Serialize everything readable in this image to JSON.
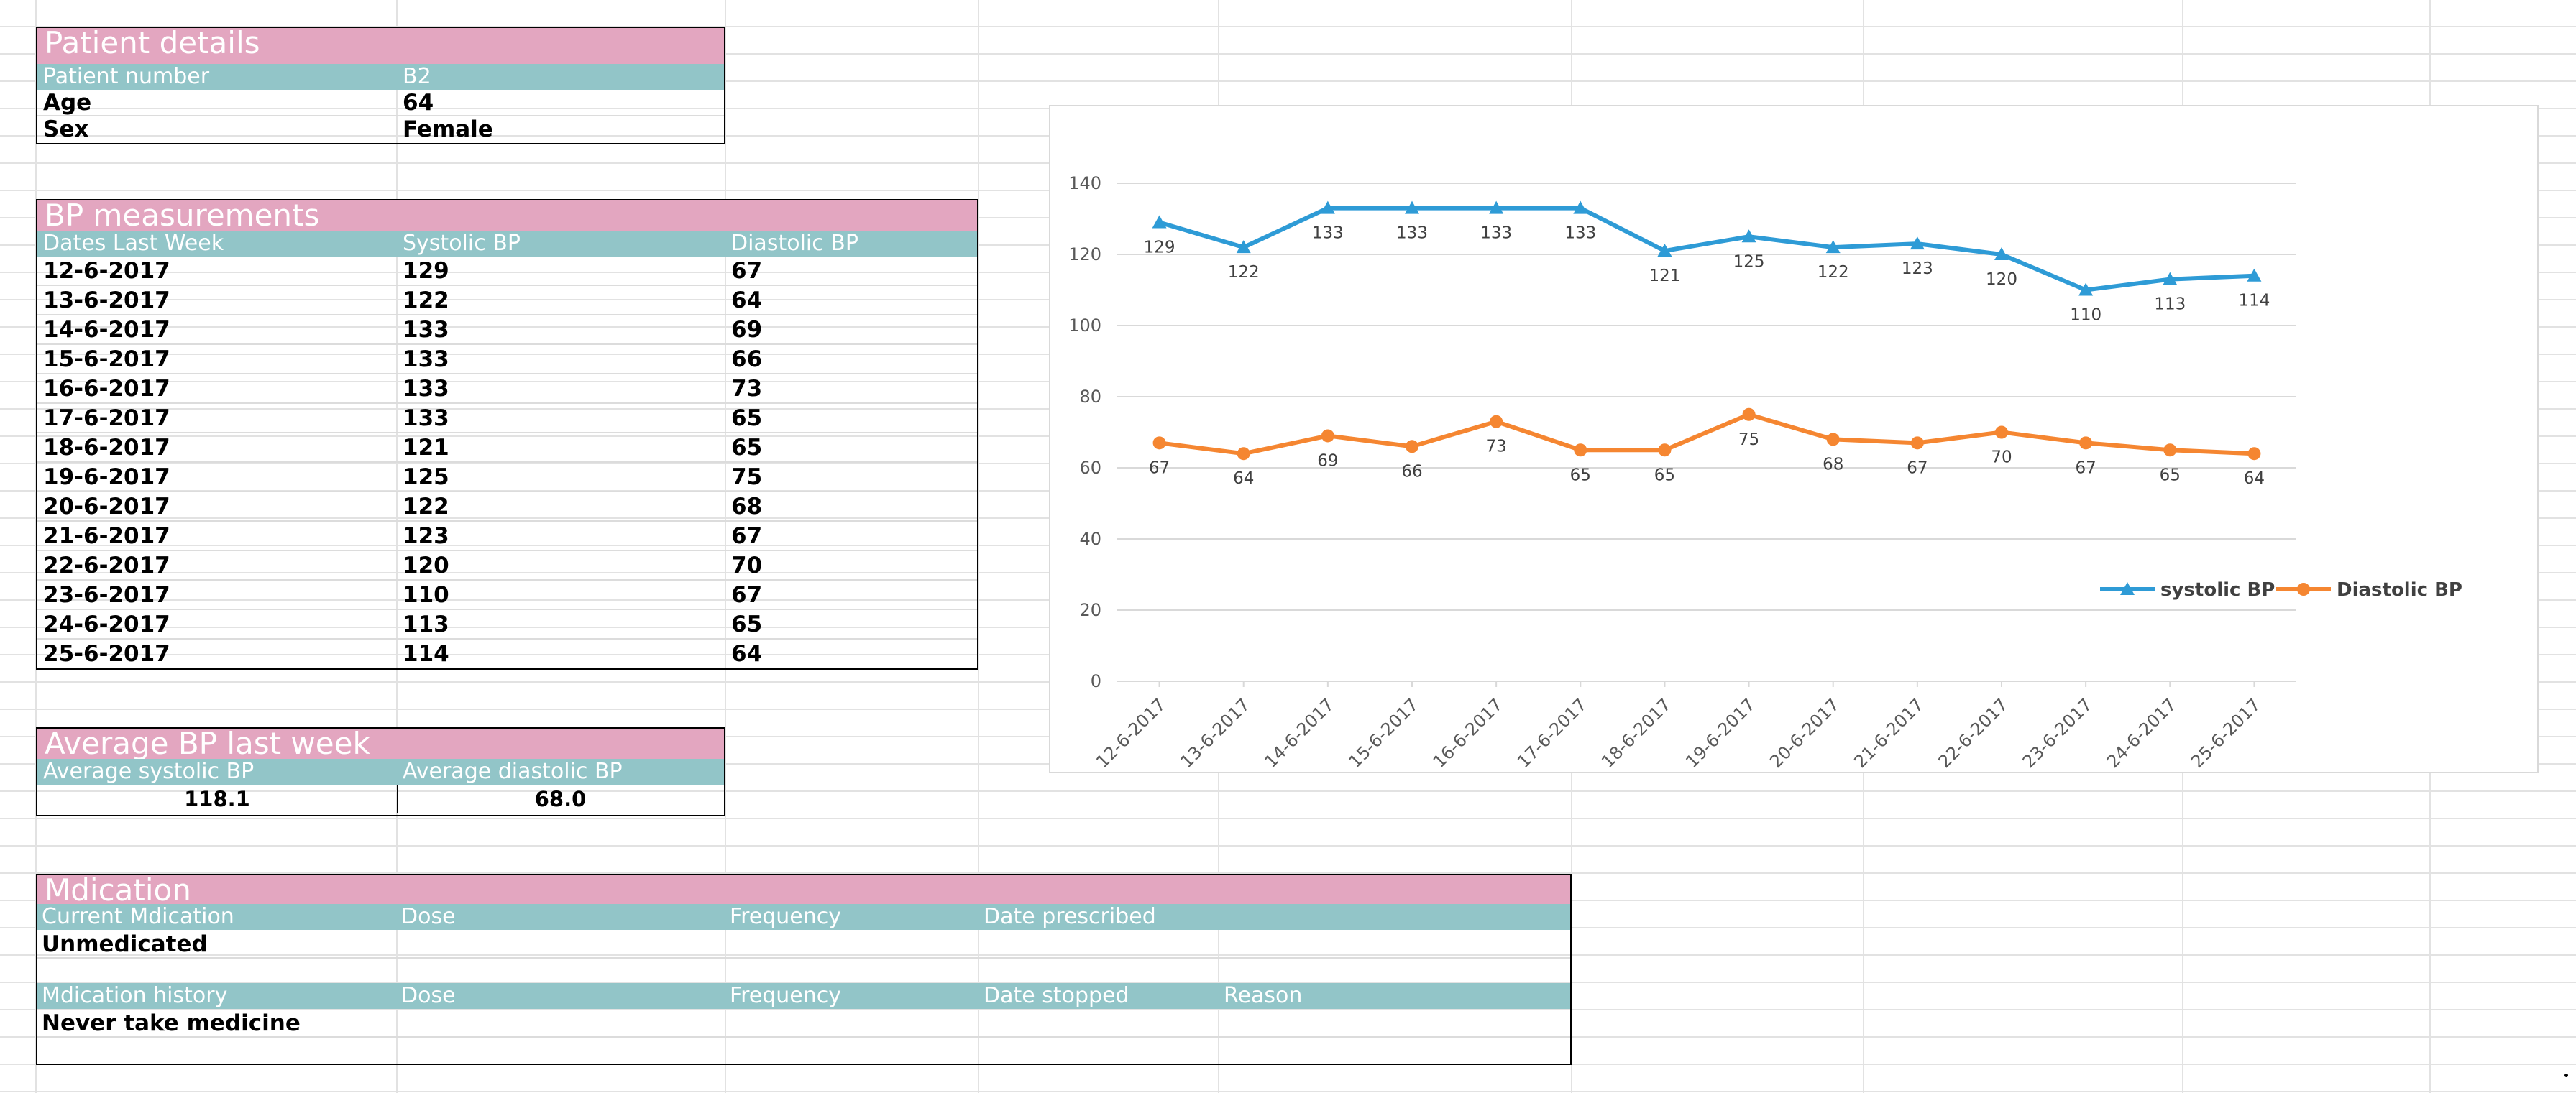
{
  "patient": {
    "title": "Patient details",
    "header_label": "Patient number",
    "header_value": "B2",
    "rows": [
      {
        "label": "Age",
        "value": "64"
      },
      {
        "label": "Sex",
        "value": "Female"
      }
    ]
  },
  "bp": {
    "title": "BP measurements",
    "headers": [
      "Dates Last Week",
      "Systolic BP",
      "Diastolic BP"
    ],
    "rows": [
      [
        "12-6-2017",
        "129",
        "67"
      ],
      [
        "13-6-2017",
        "122",
        "64"
      ],
      [
        "14-6-2017",
        "133",
        "69"
      ],
      [
        "15-6-2017",
        "133",
        "66"
      ],
      [
        "16-6-2017",
        "133",
        "73"
      ],
      [
        "17-6-2017",
        "133",
        "65"
      ],
      [
        "18-6-2017",
        "121",
        "65"
      ],
      [
        "19-6-2017",
        "125",
        "75"
      ],
      [
        "20-6-2017",
        "122",
        "68"
      ],
      [
        "21-6-2017",
        "123",
        "67"
      ],
      [
        "22-6-2017",
        "120",
        "70"
      ],
      [
        "23-6-2017",
        "110",
        "67"
      ],
      [
        "24-6-2017",
        "113",
        "65"
      ],
      [
        "25-6-2017",
        "114",
        "64"
      ]
    ]
  },
  "average": {
    "title": "Average BP last week",
    "headers": [
      "Average systolic BP",
      "Average diastolic BP"
    ],
    "values": [
      "118.1",
      "68.0"
    ]
  },
  "medication": {
    "title": "Mdication",
    "current_headers": [
      "Current Mdication",
      "Dose",
      "Frequency",
      "Date prescribed"
    ],
    "current_value": "Unmedicated",
    "history_headers": [
      "Mdication history",
      "Dose",
      "Frequency",
      "Date stopped",
      "Reason"
    ],
    "history_value": "Never take medicine"
  },
  "colors": {
    "title_bg": "#e3a6c0",
    "header_bg": "#92c5c8",
    "systolic": "#2e9bd6",
    "diastolic": "#f58631"
  },
  "chart_data": {
    "type": "line",
    "categories": [
      "12-6-2017",
      "13-6-2017",
      "14-6-2017",
      "15-6-2017",
      "16-6-2017",
      "17-6-2017",
      "18-6-2017",
      "19-6-2017",
      "20-6-2017",
      "21-6-2017",
      "22-6-2017",
      "23-6-2017",
      "24-6-2017",
      "25-6-2017"
    ],
    "series": [
      {
        "name": "systolic BP",
        "marker": "triangle",
        "color": "#2e9bd6",
        "values": [
          129,
          122,
          133,
          133,
          133,
          133,
          121,
          125,
          122,
          123,
          120,
          110,
          113,
          114
        ]
      },
      {
        "name": "Diastolic BP",
        "marker": "circle",
        "color": "#f58631",
        "values": [
          67,
          64,
          69,
          66,
          73,
          65,
          65,
          75,
          68,
          67,
          70,
          67,
          65,
          64
        ]
      }
    ],
    "ylim": [
      0,
      140
    ],
    "yticks": [
      "0",
      "20",
      "40",
      "60",
      "80",
      "100",
      "120",
      "140"
    ],
    "grid": true,
    "legend": "right",
    "title": "",
    "xlabel": "",
    "ylabel": ""
  }
}
